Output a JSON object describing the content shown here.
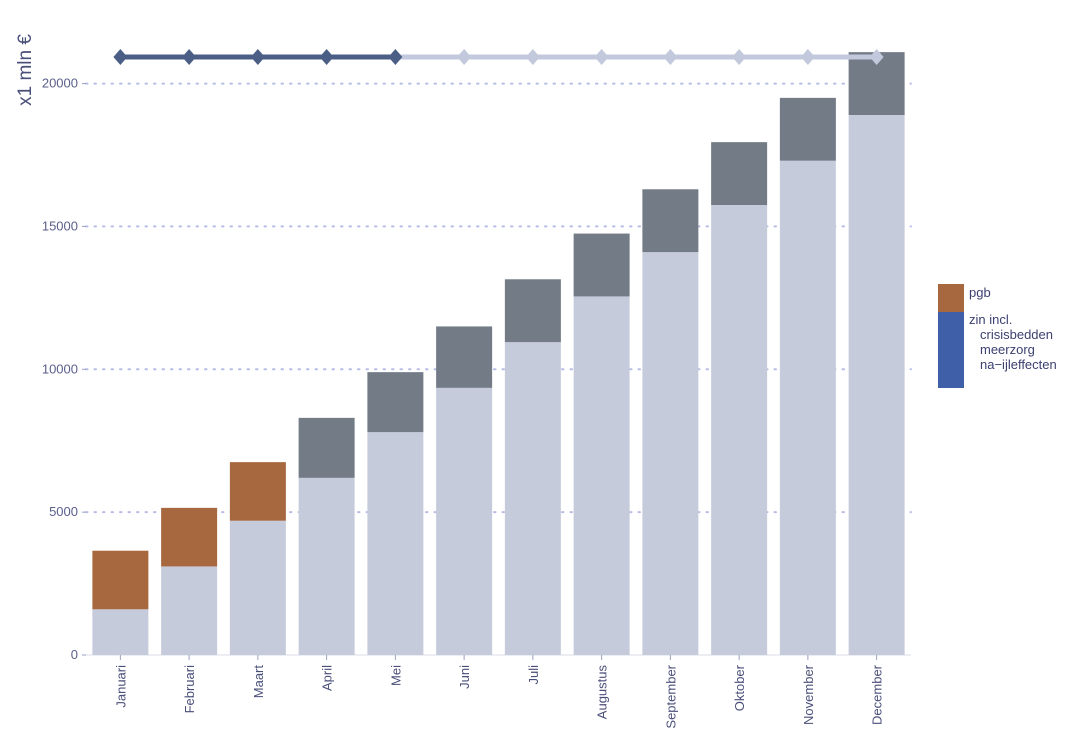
{
  "chart_data": {
    "type": "bar",
    "stacked": true,
    "ylabel": "x1 mln €",
    "xlabel": "",
    "ylim": [
      0,
      21000
    ],
    "yticks": [
      0,
      5000,
      10000,
      15000,
      20000
    ],
    "grid": "horizontal dotted",
    "legend_position": "right",
    "categories": [
      "Januari",
      "Februari",
      "Maart",
      "April",
      "Mei",
      "Juni",
      "Juli",
      "Augustus",
      "September",
      "Oktober",
      "November",
      "December"
    ],
    "series": [
      {
        "role": "base",
        "values": [
          1600,
          3100,
          4700,
          6200,
          7800,
          9350,
          10950,
          12550,
          14100,
          15750,
          17300,
          18900
        ]
      },
      {
        "role": "top",
        "values": [
          2050,
          2050,
          2050,
          2100,
          2100,
          2150,
          2200,
          2200,
          2200,
          2200,
          2200,
          2200
        ]
      }
    ],
    "top_colors": [
      "#a8683f",
      "#a8683f",
      "#a8683f",
      "#737b86",
      "#737b86",
      "#737b86",
      "#737b86",
      "#737b86",
      "#737b86",
      "#737b86",
      "#737b86",
      "#737b86"
    ],
    "markers": {
      "y": 21000,
      "highlighted_count": 5,
      "color_active": "#4b5e86",
      "color_inactive": "#c3c9dc"
    },
    "legend": [
      {
        "label": "pgb",
        "color": "#a8683f"
      },
      {
        "label": "zin incl.",
        "sublabels": [
          "crisisbedden",
          "meerzorg",
          "na−ijleffecten"
        ],
        "color": "#3f5fa8"
      }
    ],
    "colors": {
      "base": "#c6cbdc",
      "grid": "#b7bde6",
      "axis_text": "#5a5f8a"
    }
  }
}
